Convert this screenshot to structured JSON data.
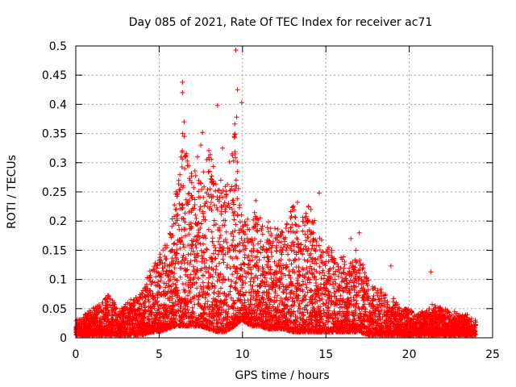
{
  "chart_data": {
    "type": "scatter",
    "title": "Day 085 of 2021, Rate Of TEC Index for receiver ac71",
    "xlabel": "GPS time / hours",
    "ylabel": "ROTI / TECUs",
    "xlim": [
      0,
      25
    ],
    "ylim": [
      0,
      0.5
    ],
    "xticks": [
      "0",
      "5",
      "10",
      "15",
      "20",
      "25"
    ],
    "yticks": [
      "0",
      "0.05",
      "0.1",
      "0.15",
      "0.2",
      "0.25",
      "0.3",
      "0.35",
      "0.4",
      "0.45",
      "0.5"
    ],
    "grid": true,
    "marker": "+",
    "marker_color": "#ff0000",
    "envelope_hours": [
      0,
      0.5,
      1,
      1.5,
      2,
      2.5,
      3,
      3.5,
      4,
      4.5,
      5,
      5.5,
      6,
      6.5,
      7,
      7.5,
      8,
      8.5,
      9,
      9.5,
      10,
      10.5,
      11,
      11.5,
      12,
      12.5,
      13,
      13.5,
      14,
      14.5,
      15,
      15.5,
      16,
      16.5,
      17,
      17.5,
      18,
      18.5,
      19,
      19.5,
      20,
      20.5,
      21,
      21.5,
      22,
      22.5,
      23,
      23.5,
      24
    ],
    "envelope_max": [
      0.03,
      0.04,
      0.05,
      0.06,
      0.08,
      0.05,
      0.06,
      0.07,
      0.08,
      0.12,
      0.14,
      0.17,
      0.25,
      0.35,
      0.28,
      0.3,
      0.33,
      0.26,
      0.28,
      0.38,
      0.2,
      0.22,
      0.21,
      0.2,
      0.19,
      0.18,
      0.23,
      0.2,
      0.24,
      0.18,
      0.16,
      0.15,
      0.14,
      0.13,
      0.15,
      0.1,
      0.09,
      0.08,
      0.07,
      0.05,
      0.05,
      0.04,
      0.05,
      0.06,
      0.05,
      0.05,
      0.04,
      0.04,
      0.03
    ],
    "envelope_min": [
      0.005,
      0.005,
      0.005,
      0.005,
      0.005,
      0.005,
      0.005,
      0.005,
      0.005,
      0.01,
      0.01,
      0.015,
      0.02,
      0.02,
      0.02,
      0.02,
      0.015,
      0.01,
      0.01,
      0.02,
      0.03,
      0.02,
      0.02,
      0.015,
      0.015,
      0.015,
      0.01,
      0.01,
      0.01,
      0.01,
      0.01,
      0.01,
      0.01,
      0.01,
      0.01,
      0.005,
      0.005,
      0.005,
      0.005,
      0.005,
      0.005,
      0.005,
      0.005,
      0.005,
      0.005,
      0.005,
      0.005,
      0.005,
      0.005
    ],
    "highlighted_points": [
      [
        9.6,
        0.493
      ],
      [
        9.7,
        0.425
      ],
      [
        6.4,
        0.438
      ],
      [
        6.4,
        0.42
      ],
      [
        9.95,
        0.403
      ],
      [
        8.5,
        0.398
      ],
      [
        9.65,
        0.378
      ],
      [
        6.5,
        0.37
      ],
      [
        6.4,
        0.35
      ],
      [
        7.6,
        0.352
      ],
      [
        9.5,
        0.345
      ],
      [
        7.5,
        0.33
      ],
      [
        8.8,
        0.325
      ],
      [
        9.55,
        0.315
      ],
      [
        7.3,
        0.31
      ],
      [
        6.7,
        0.295
      ],
      [
        9.7,
        0.285
      ],
      [
        8.7,
        0.27
      ],
      [
        10.8,
        0.235
      ],
      [
        13.3,
        0.232
      ],
      [
        14.6,
        0.248
      ],
      [
        16.5,
        0.17
      ],
      [
        17.0,
        0.18
      ],
      [
        16.8,
        0.15
      ],
      [
        18.9,
        0.123
      ],
      [
        21.3,
        0.113
      ]
    ],
    "n_points": 6000
  }
}
